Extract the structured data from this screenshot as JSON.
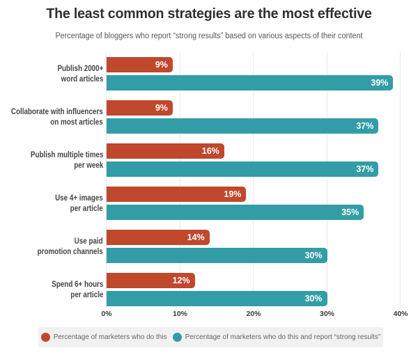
{
  "title": "The least common strategies are the most effective",
  "subtitle": "Percentage of bloggers who report “strong results” based on various aspects of their content",
  "colors": {
    "do_this": "#c0482c",
    "strong_results": "#329da7",
    "legend_bg": "#f1f1f1",
    "grid": "#e8e8e8",
    "value_text": "#ffffff"
  },
  "chart_data": {
    "type": "bar",
    "orientation": "horizontal",
    "categories": [
      "Publish 2000+\nword articles",
      "Collaborate with influencers\non most articles",
      "Publish multiple times\nper week",
      "Use 4+ images\nper article",
      "Use paid\npromotion channels",
      "Spend 6+ hours\nper article"
    ],
    "series": [
      {
        "name": "Percentage of marketers who do this",
        "color": "#c0482c",
        "values": [
          9,
          9,
          16,
          19,
          14,
          12
        ]
      },
      {
        "name": "Percentage of marketers who do this and report “strong results”",
        "color": "#329da7",
        "values": [
          39,
          37,
          37,
          35,
          30,
          30
        ]
      }
    ],
    "value_labels": [
      [
        "9%",
        "9%",
        "16%",
        "19%",
        "14%",
        "12%"
      ],
      [
        "39%",
        "37%",
        "37%",
        "35%",
        "30%",
        "30%"
      ]
    ],
    "xlim": [
      0,
      40
    ],
    "x_ticks": [
      "0%",
      "10%",
      "20%",
      "30%",
      "40%"
    ],
    "grid": true,
    "legend_position": "bottom"
  }
}
